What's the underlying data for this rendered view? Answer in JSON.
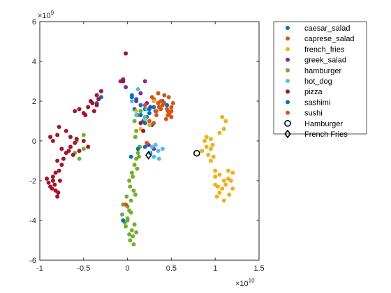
{
  "chart_data": {
    "type": "scatter",
    "xlim": [
      -1,
      1.5
    ],
    "ylim": [
      -6,
      6
    ],
    "x_scale_label": "×10",
    "x_scale_exp": "10",
    "y_scale_label": "×10",
    "y_scale_exp": "9",
    "x_ticks": [
      -1,
      -0.5,
      0,
      0.5,
      1,
      1.5
    ],
    "x_tick_labels": [
      "-1",
      "-0.5",
      "0",
      "0.5",
      "1",
      "1.5"
    ],
    "y_ticks": [
      -6,
      -4,
      -2,
      0,
      2,
      4,
      6
    ],
    "y_tick_labels": [
      "-6",
      "-4",
      "-2",
      "0",
      "2",
      "4",
      "6"
    ],
    "grid": false,
    "legend_position": "outside-right-top",
    "series": [
      {
        "name": "caesar_salad",
        "color": "#0072BD",
        "marker": "dot",
        "points": [
          [
            0.05,
            2.2
          ],
          [
            0.1,
            2.1
          ],
          [
            0.15,
            1.8
          ],
          [
            0.2,
            1.6
          ],
          [
            0.25,
            1.4
          ],
          [
            0.3,
            1.7
          ],
          [
            0.35,
            1.9
          ],
          [
            0.22,
            1.2
          ],
          [
            0.18,
            1.0
          ],
          [
            0.28,
            0.8
          ],
          [
            0.32,
            1.5
          ],
          [
            0.4,
            2.0
          ],
          [
            0.12,
            1.3
          ],
          [
            0.08,
            1.6
          ],
          [
            0.26,
            -0.6
          ],
          [
            0.2,
            -0.3
          ],
          [
            0.04,
            -0.8
          ],
          [
            -0.3,
            2.2
          ],
          [
            -0.35,
            1.9
          ],
          [
            0.45,
            1.8
          ]
        ]
      },
      {
        "name": "caprese_salad",
        "color": "#D95319",
        "marker": "dot",
        "points": [
          [
            0.3,
            2.1
          ],
          [
            0.35,
            1.9
          ],
          [
            0.4,
            1.8
          ],
          [
            0.45,
            1.6
          ],
          [
            0.5,
            1.7
          ],
          [
            0.48,
            1.4
          ],
          [
            0.42,
            2.3
          ],
          [
            0.38,
            2.0
          ],
          [
            0.46,
            1.5
          ],
          [
            0.5,
            1.2
          ],
          [
            0.44,
            1.1
          ],
          [
            0.36,
            1.7
          ],
          [
            0.33,
            1.5
          ],
          [
            0.52,
            1.9
          ],
          [
            0.47,
            2.2
          ]
        ]
      },
      {
        "name": "french_fries",
        "color": "#EDB120",
        "marker": "dot",
        "points": [
          [
            0.85,
            -0.5
          ],
          [
            0.9,
            -0.3
          ],
          [
            0.95,
            0.1
          ],
          [
            0.98,
            -0.8
          ],
          [
            1.0,
            -1.5
          ],
          [
            1.05,
            -1.7
          ],
          [
            1.1,
            -2.0
          ],
          [
            1.08,
            -2.4
          ],
          [
            1.12,
            -2.2
          ],
          [
            1.15,
            -1.9
          ],
          [
            1.05,
            -2.6
          ],
          [
            1.1,
            -3.0
          ],
          [
            1.02,
            -2.8
          ],
          [
            1.0,
            -2.2
          ],
          [
            0.95,
            -1.0
          ],
          [
            0.92,
            -0.7
          ],
          [
            1.08,
            1.2
          ],
          [
            1.12,
            1.0
          ],
          [
            1.1,
            0.6
          ],
          [
            1.05,
            0.4
          ],
          [
            0.9,
            0.2
          ],
          [
            0.88,
            0.0
          ],
          [
            0.95,
            -0.4
          ],
          [
            1.15,
            -1.5
          ],
          [
            1.2,
            -2.4
          ],
          [
            1.18,
            -2.0
          ],
          [
            1.0,
            -1.8
          ],
          [
            1.03,
            -2.3
          ],
          [
            0.3,
            2.0
          ],
          [
            0.1,
            1.5
          ],
          [
            0.2,
            1.1
          ],
          [
            0.25,
            0.8
          ],
          [
            0.15,
            0.6
          ],
          [
            1.2,
            -1.6
          ],
          [
            1.16,
            -2.7
          ],
          [
            0.97,
            -0.2
          ]
        ]
      },
      {
        "name": "greek_salad",
        "color": "#7E2F8E",
        "marker": "dot",
        "points": [
          [
            -0.05,
            3.1
          ],
          [
            -0.08,
            3.0
          ],
          [
            -0.02,
            2.7
          ],
          [
            0.2,
            3.0
          ],
          [
            0.15,
            2.4
          ],
          [
            0.22,
            1.9
          ],
          [
            0.26,
            1.7
          ],
          [
            0.1,
            2.0
          ],
          [
            -0.35,
            2.3
          ],
          [
            0.3,
            -0.4
          ],
          [
            0.24,
            -0.2
          ]
        ]
      },
      {
        "name": "hamburger",
        "color": "#77AC30",
        "marker": "dot",
        "points": [
          [
            0.0,
            -4.0
          ],
          [
            0.05,
            -4.5
          ],
          [
            0.03,
            -5.0
          ],
          [
            -0.02,
            -4.3
          ],
          [
            0.06,
            -4.8
          ],
          [
            0.08,
            -4.2
          ],
          [
            0.02,
            -3.5
          ],
          [
            -0.05,
            -3.2
          ],
          [
            -0.01,
            -2.8
          ],
          [
            0.04,
            -3.0
          ],
          [
            0.07,
            -2.5
          ],
          [
            0.02,
            -2.0
          ],
          [
            0.05,
            -1.6
          ],
          [
            0.08,
            -1.2
          ],
          [
            0.1,
            -0.9
          ],
          [
            0.12,
            -0.6
          ],
          [
            0.14,
            -0.3
          ],
          [
            -0.06,
            -3.7
          ],
          [
            0.0,
            -3.9
          ],
          [
            0.1,
            -4.6
          ],
          [
            0.07,
            -5.2
          ],
          [
            -0.03,
            -4.1
          ],
          [
            0.03,
            -2.3
          ],
          [
            0.06,
            -1.8
          ],
          [
            0.09,
            0.2
          ],
          [
            0.1,
            0.5
          ],
          [
            0.08,
            1.0
          ],
          [
            0.12,
            1.3
          ],
          [
            0.15,
            1.5
          ],
          [
            -0.5,
            -0.4
          ],
          [
            -0.6,
            -0.6
          ],
          [
            -0.55,
            -0.9
          ],
          [
            -0.5,
            0.3
          ],
          [
            -0.58,
            0.0
          ],
          [
            0.0,
            -3.3
          ],
          [
            0.04,
            -3.6
          ],
          [
            0.09,
            -2.7
          ],
          [
            0.02,
            -4.7
          ],
          [
            0.11,
            -1.4
          ],
          [
            0.13,
            -0.8
          ]
        ]
      },
      {
        "name": "hot_dog",
        "color": "#4DBEEE",
        "marker": "dot",
        "points": [
          [
            0.25,
            -0.6
          ],
          [
            0.3,
            -0.8
          ],
          [
            0.35,
            -0.5
          ],
          [
            0.4,
            -0.4
          ],
          [
            0.36,
            -0.9
          ],
          [
            0.32,
            -0.2
          ],
          [
            0.28,
            -0.3
          ],
          [
            0.2,
            1.2
          ],
          [
            0.1,
            1.3
          ],
          [
            0.05,
            2.0
          ],
          [
            0.12,
            2.6
          ],
          [
            0.22,
            1.6
          ]
        ]
      },
      {
        "name": "pizza",
        "color": "#A2142F",
        "marker": "dot",
        "points": [
          [
            -0.85,
            -2.0
          ],
          [
            -0.88,
            -2.3
          ],
          [
            -0.82,
            -2.5
          ],
          [
            -0.8,
            -2.8
          ],
          [
            -0.85,
            -1.8
          ],
          [
            -0.78,
            -1.5
          ],
          [
            -0.75,
            -1.2
          ],
          [
            -0.8,
            -1.0
          ],
          [
            -0.9,
            -2.1
          ],
          [
            -0.92,
            -1.9
          ],
          [
            -0.83,
            -2.2
          ],
          [
            -0.77,
            -2.0
          ],
          [
            -0.7,
            -0.6
          ],
          [
            -0.75,
            -0.4
          ],
          [
            -0.65,
            -0.3
          ],
          [
            -0.6,
            -0.1
          ],
          [
            -0.55,
            -0.5
          ],
          [
            -0.45,
            -0.3
          ],
          [
            -0.5,
            0.0
          ],
          [
            -0.62,
            -0.7
          ],
          [
            -0.8,
            0.3
          ],
          [
            -0.85,
            0.0
          ],
          [
            -0.88,
            0.2
          ],
          [
            -0.78,
            0.7
          ],
          [
            -0.7,
            0.5
          ],
          [
            -0.65,
            0.2
          ],
          [
            -0.6,
            1.5
          ],
          [
            -0.55,
            1.6
          ],
          [
            -0.5,
            1.4
          ],
          [
            -0.45,
            1.7
          ],
          [
            -0.4,
            1.9
          ],
          [
            -0.35,
            1.8
          ],
          [
            -0.3,
            2.5
          ],
          [
            -0.35,
            2.3
          ],
          [
            -0.38,
            1.5
          ],
          [
            -0.42,
            2.0
          ],
          [
            -0.02,
            4.4
          ],
          [
            -0.05,
            3.0
          ],
          [
            0.15,
            0.9
          ],
          [
            0.18,
            0.5
          ],
          [
            -0.82,
            -1.6
          ],
          [
            -0.79,
            -2.6
          ],
          [
            -0.86,
            -2.4
          ],
          [
            -0.73,
            -0.9
          ],
          [
            -0.67,
            -0.5
          ],
          [
            -0.58,
            0.1
          ],
          [
            -0.48,
            1.3
          ],
          [
            -0.33,
            2.1
          ]
        ]
      },
      {
        "name": "sashimi",
        "color": "#0072BD",
        "marker": "dot",
        "points": [
          [
            0.05,
            2.3
          ],
          [
            0.15,
            1.3
          ],
          [
            0.25,
            1.6
          ],
          [
            0.12,
            -0.4
          ],
          [
            -0.05,
            -4.0
          ],
          [
            0.2,
            0.9
          ]
        ]
      },
      {
        "name": "sushi",
        "color": "#D95319",
        "marker": "dot",
        "points": [
          [
            0.2,
            1.8
          ],
          [
            0.28,
            2.2
          ],
          [
            0.33,
            1.3
          ],
          [
            0.42,
            1.9
          ],
          [
            0.46,
            1.3
          ],
          [
            0.38,
            1.6
          ],
          [
            0.5,
            1.5
          ],
          [
            0.25,
            1.0
          ],
          [
            0.3,
            0.9
          ],
          [
            0.35,
            2.4
          ],
          [
            -0.02,
            -3.2
          ],
          [
            0.22,
            -0.1
          ]
        ]
      },
      {
        "name": "Hamburger",
        "color": "#000000",
        "marker": "circle",
        "points": [
          [
            0.79,
            -0.62
          ]
        ]
      },
      {
        "name": "French Fries",
        "color": "#000000",
        "marker": "diamond",
        "points": [
          [
            0.24,
            -0.72
          ]
        ]
      }
    ]
  }
}
